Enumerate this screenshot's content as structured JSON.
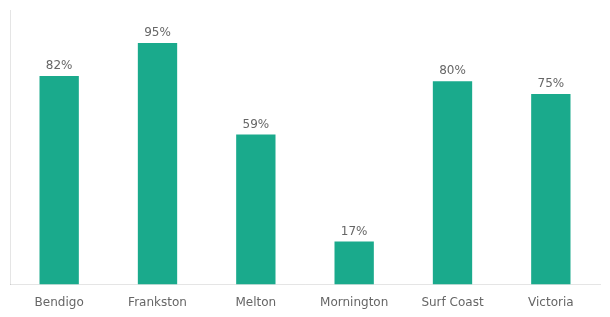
{
  "chart_data": {
    "type": "bar",
    "categories": [
      "Bendigo",
      "Frankston",
      "Melton",
      "Mornington",
      "Surf Coast",
      "Victoria"
    ],
    "values": [
      82,
      95,
      59,
      17,
      80,
      75
    ],
    "value_labels": [
      "82%",
      "95%",
      "59%",
      "17%",
      "80%",
      "75%"
    ],
    "data_labels": true,
    "color": "#1aaa8c",
    "ylim": [
      0,
      108
    ],
    "grid": false,
    "tick_labels": "x"
  }
}
